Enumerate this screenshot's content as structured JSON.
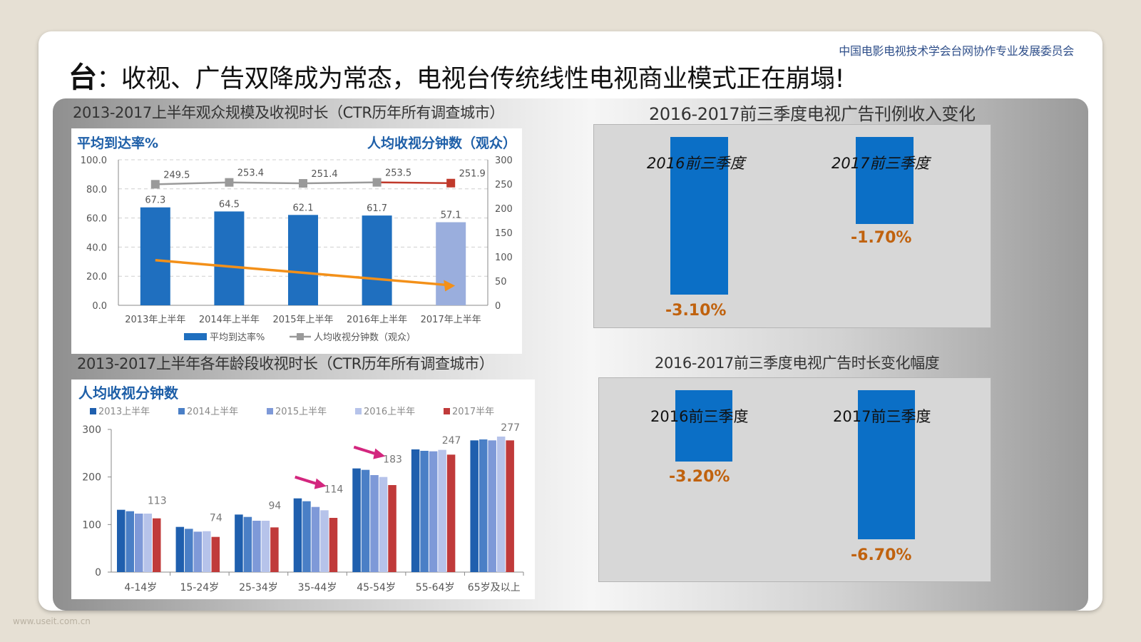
{
  "slide": {
    "org": "中国电影电视技术学会台网协作专业发展委员会",
    "title_lead": "台",
    "title_rest": "：收视、广告双降成为常态，电视台传统线性电视商业模式正在崩塌!",
    "watermark": "www.useit.com.cn"
  },
  "captions": {
    "c1": "2013-2017上半年观众规模及收视时长（CTR历年所有调查城市）",
    "c2": "2013-2017上半年各年龄段收视时长（CTR历年所有调查城市）",
    "c3": "2016-2017前三季度电视广告刊例收入变化",
    "c4": "2016-2017前三季度电视广告时长变化幅度"
  },
  "colors": {
    "bar_blue": "#1f6fbf",
    "bar_light": "#9aaedd",
    "line_gray": "#9a9a9a",
    "red": "#c0392b",
    "orange": "#f39019",
    "navy_text": "#1e5fa8"
  },
  "chart_data": [
    {
      "type": "bar",
      "title_left": "平均到达率%",
      "title_right": "人均收视分钟数（观众）",
      "categories": [
        "2013年上半年",
        "2014年上半年",
        "2015年上半年",
        "2016年上半年",
        "2017年上半年"
      ],
      "series": [
        {
          "name": "平均到达率%",
          "axis": "left",
          "values": [
            67.3,
            64.5,
            62.1,
            61.7,
            57.1
          ]
        },
        {
          "name": "人均收视分钟数（观众）",
          "axis": "right",
          "type": "line",
          "values": [
            249.5,
            253.4,
            251.4,
            253.5,
            251.9
          ]
        }
      ],
      "left_ticks": [
        "100.0",
        "80.0",
        "60.0",
        "40.0",
        "20.0",
        "0.0"
      ],
      "right_ticks": [
        "300",
        "250",
        "200",
        "150",
        "100",
        "50",
        "0"
      ],
      "ylim_left": [
        0,
        100
      ],
      "ylim_right": [
        0,
        300
      ],
      "trend": "down"
    },
    {
      "type": "bar",
      "title": "人均收视分钟数",
      "categories": [
        "4-14岁",
        "15-24岁",
        "25-34岁",
        "35-44岁",
        "45-54岁",
        "55-64岁",
        "65岁及以上"
      ],
      "series": [
        {
          "name": "2013上半年",
          "values": [
            131,
            95,
            121,
            155,
            218,
            258,
            277
          ]
        },
        {
          "name": "2014上半年",
          "values": [
            128,
            91,
            116,
            149,
            215,
            255,
            279
          ]
        },
        {
          "name": "2015上半年",
          "values": [
            123,
            85,
            108,
            137,
            204,
            254,
            277
          ]
        },
        {
          "name": "2016上半年",
          "values": [
            123,
            86,
            108,
            130,
            200,
            257,
            285
          ]
        },
        {
          "name": "2017半年",
          "values": [
            113,
            74,
            94,
            114,
            183,
            247,
            277
          ]
        }
      ],
      "value_labels": [
        "113",
        "74",
        "94",
        "114",
        "183",
        "247",
        "277"
      ],
      "y_ticks": [
        "300",
        "200",
        "100",
        "0"
      ],
      "ylim": [
        0,
        300
      ]
    },
    {
      "type": "bar",
      "title": "2016-2017前三季度电视广告刊例收入变化",
      "categories": [
        "2016前三季度",
        "2017前三季度"
      ],
      "values": [
        -3.1,
        -1.7
      ],
      "labels": [
        "-3.10%",
        "-1.70%"
      ]
    },
    {
      "type": "bar",
      "title": "2016-2017前三季度电视广告时长变化幅度",
      "categories": [
        "2016前三季度",
        "2017前三季度"
      ],
      "values": [
        -3.2,
        -6.7
      ],
      "labels": [
        "-3.20%",
        "-6.70%"
      ]
    }
  ]
}
